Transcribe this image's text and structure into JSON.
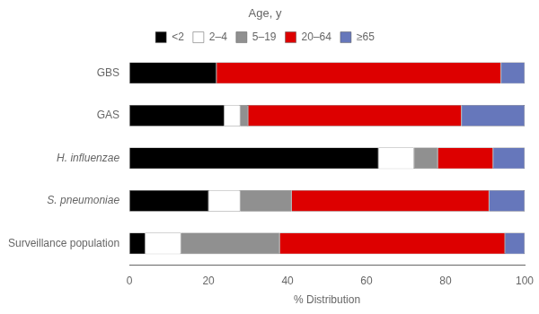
{
  "chart_data": {
    "type": "bar",
    "orientation": "horizontal",
    "stacked": true,
    "title": "Age, y",
    "xlabel": "% Distribution",
    "categories": [
      "GBS",
      "GAS",
      "H. influenzae",
      "S. pneumoniae",
      "Surveillance population"
    ],
    "series": [
      {
        "name": "<2",
        "color": "#000000",
        "values": [
          22,
          24,
          63,
          20,
          4
        ]
      },
      {
        "name": "2–4",
        "color": "#ffffff",
        "values": [
          0,
          4,
          9,
          8,
          9
        ]
      },
      {
        "name": "5–19",
        "color": "#909090",
        "values": [
          0,
          2,
          6,
          13,
          25
        ]
      },
      {
        "name": "20–64",
        "color": "#dd0000",
        "values": [
          72,
          54,
          14,
          50,
          57
        ]
      },
      {
        "name": "≥65",
        "color": "#6677bb",
        "values": [
          6,
          16,
          8,
          9,
          5
        ]
      }
    ],
    "xlim": [
      0,
      100
    ],
    "xticks": [
      0,
      20,
      40,
      60,
      80,
      100
    ],
    "grid": false,
    "legend": "top"
  }
}
